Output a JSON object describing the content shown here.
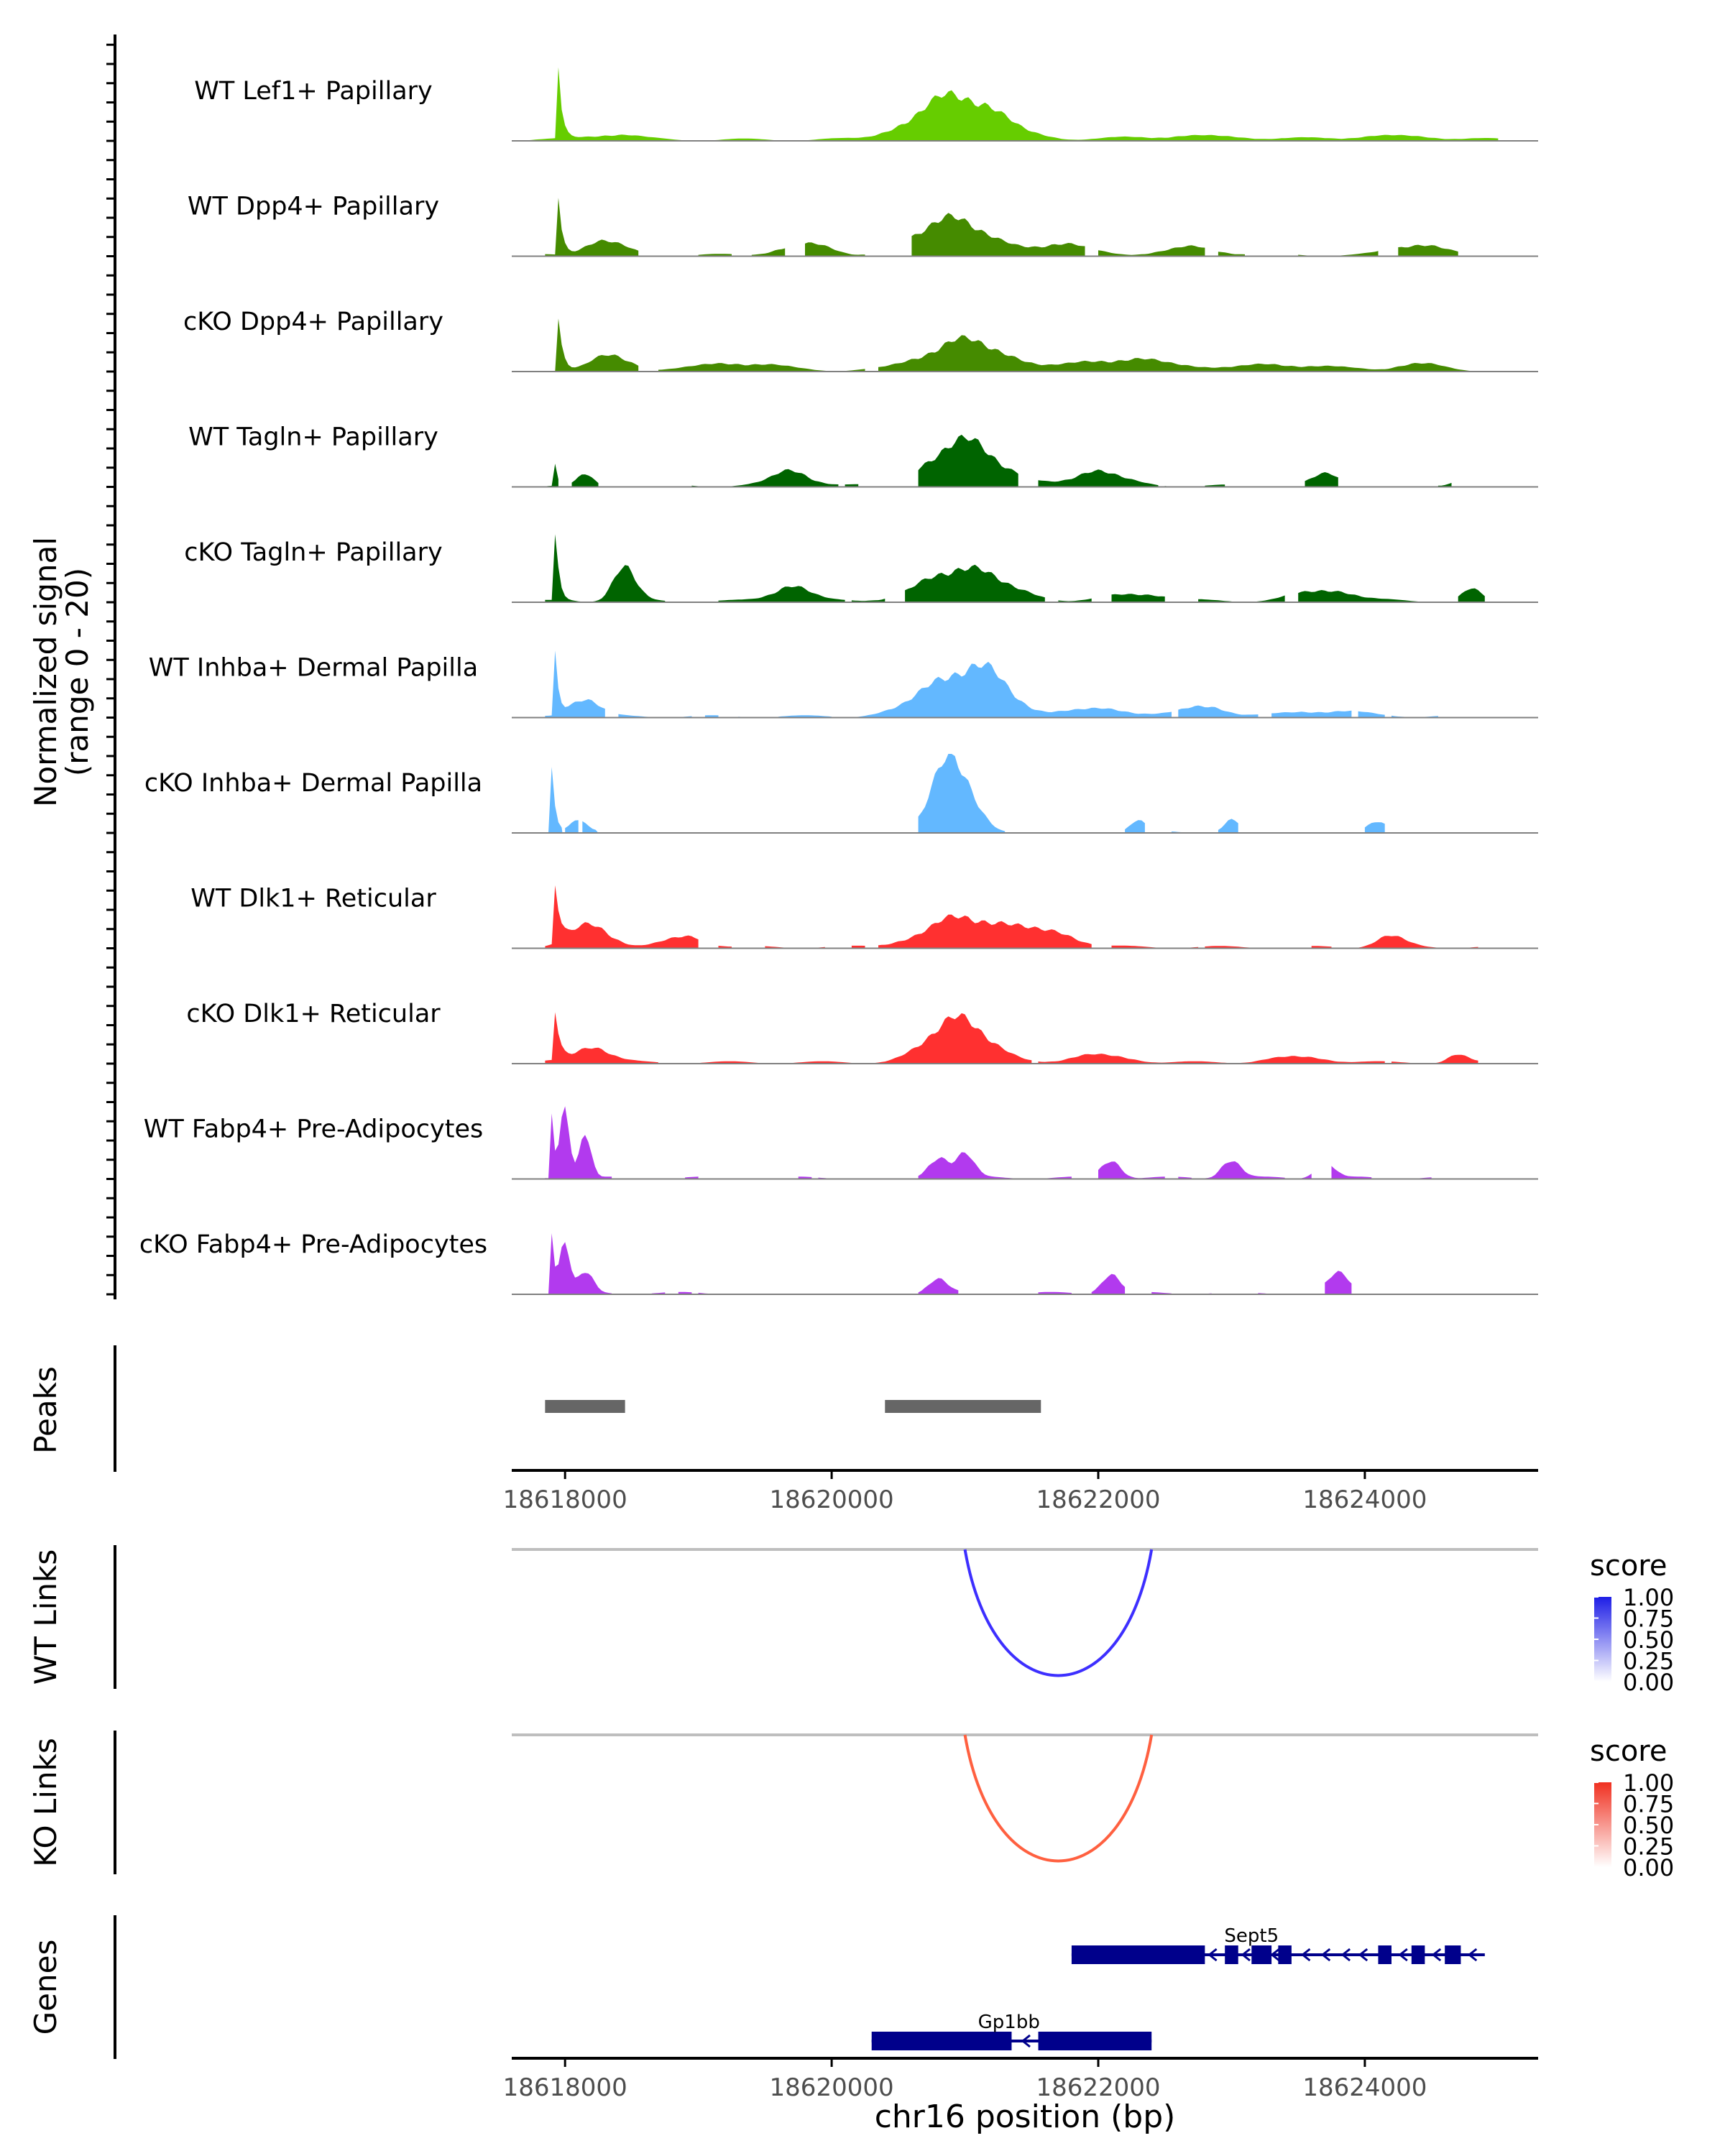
{
  "chart_data": {
    "type": "area",
    "chromosome": "chr16",
    "xlabel": "chr16 position (bp)",
    "xlim": [
      18617600,
      18625300
    ],
    "xticks": [
      18618000,
      18620000,
      18622000,
      18624000
    ],
    "xtick_labels": [
      "18618000",
      "18620000",
      "18622000",
      "18624000"
    ],
    "coverage": {
      "ylabel_line1": "Normalized signal",
      "ylabel_line2": "(range 0 - 20)",
      "ylim": [
        0,
        20
      ],
      "tracks": [
        {
          "name": "WT Lef1+ Papillary",
          "color": "#66cd00",
          "peaks": [
            [
              18617950,
              20,
              60
            ],
            [
              18618350,
              1.5,
              250
            ],
            [
              18620950,
              12,
              420
            ],
            [
              18622700,
              1,
              600
            ],
            [
              18624200,
              1,
              500
            ]
          ],
          "bins": [
            [
              18617600,
              18625000
            ]
          ]
        },
        {
          "name": "WT Dpp4+ Papillary",
          "color": "#458b00",
          "peaks": [
            [
              18617950,
              18,
              60
            ],
            [
              18618300,
              4,
              200
            ],
            [
              18619800,
              3,
              250
            ],
            [
              18620900,
              10,
              350
            ],
            [
              18621700,
              3,
              300
            ],
            [
              18622700,
              2,
              300
            ],
            [
              18624400,
              3,
              250
            ]
          ],
          "bins": [
            [
              18617850,
              18618550
            ],
            [
              18618750,
              18618850
            ],
            [
              18619000,
              18619250
            ],
            [
              18619400,
              18619650
            ],
            [
              18619800,
              18620250
            ],
            [
              18620600,
              18621900
            ],
            [
              18622000,
              18622800
            ],
            [
              18622900,
              18623100
            ],
            [
              18623500,
              18624100
            ],
            [
              18624250,
              18624700
            ]
          ]
        },
        {
          "name": "cKO Dpp4+ Papillary",
          "color": "#458b00",
          "peaks": [
            [
              18617950,
              16,
              70
            ],
            [
              18618350,
              4,
              200
            ],
            [
              18619300,
              2,
              400
            ],
            [
              18621000,
              8,
              400
            ],
            [
              18622200,
              3,
              500
            ],
            [
              18623400,
              1.5,
              500
            ],
            [
              18624400,
              2,
              200
            ]
          ],
          "bins": [
            [
              18617850,
              18618550
            ],
            [
              18618700,
              18620250
            ],
            [
              18620350,
              18625000
            ]
          ]
        },
        {
          "name": "WT Tagln+ Papillary",
          "color": "#006400",
          "peaks": [
            [
              18617920,
              8,
              40
            ],
            [
              18618150,
              3,
              80
            ],
            [
              18619700,
              4,
              200
            ],
            [
              18621000,
              12,
              350
            ],
            [
              18622000,
              4,
              250
            ],
            [
              18623700,
              3,
              150
            ],
            [
              18624700,
              1.5,
              80
            ]
          ],
          "bins": [
            [
              18617850,
              18617950
            ],
            [
              18618050,
              18618250
            ],
            [
              18618400,
              18618500
            ],
            [
              18618950,
              18619000
            ],
            [
              18619200,
              18620050
            ],
            [
              18620100,
              18620200
            ],
            [
              18620650,
              18621400
            ],
            [
              18621550,
              18622450
            ],
            [
              18622500,
              18622550
            ],
            [
              18622800,
              18622950
            ],
            [
              18623550,
              18623800
            ],
            [
              18624550,
              18624650
            ]
          ]
        },
        {
          "name": "cKO Tagln+ Papillary",
          "color": "#006400",
          "peaks": [
            [
              18617930,
              16,
              60
            ],
            [
              18618450,
              9,
              120
            ],
            [
              18619700,
              4,
              200
            ],
            [
              18621000,
              9,
              400
            ],
            [
              18622300,
              2,
              300
            ],
            [
              18623700,
              3,
              300
            ],
            [
              18624800,
              3,
              100
            ]
          ],
          "bins": [
            [
              18617850,
              18618350
            ],
            [
              18618350,
              18618750
            ],
            [
              18619150,
              18620100
            ],
            [
              18620150,
              18620400
            ],
            [
              18620550,
              18621600
            ],
            [
              18621700,
              18621950
            ],
            [
              18622100,
              18622500
            ],
            [
              18622750,
              18623000
            ],
            [
              18623100,
              18623400
            ],
            [
              18623500,
              18624600
            ],
            [
              18624700,
              18624900
            ]
          ]
        },
        {
          "name": "WT Inhba+ Dermal Papilla",
          "color": "#63b8ff",
          "peaks": [
            [
              18617920,
              18,
              60
            ],
            [
              18618150,
              5,
              150
            ],
            [
              18620900,
              10,
              350
            ],
            [
              18621200,
              7,
              250
            ],
            [
              18622000,
              2,
              400
            ],
            [
              18622800,
              3,
              200
            ],
            [
              18623700,
              1.5,
              400
            ]
          ],
          "bins": [
            [
              18617850,
              18618300
            ],
            [
              18618400,
              18618700
            ],
            [
              18618850,
              18618950
            ],
            [
              18619050,
              18619150
            ],
            [
              18619300,
              18619450
            ],
            [
              18619600,
              18620000
            ],
            [
              18620100,
              18620550
            ],
            [
              18620550,
              18621550
            ],
            [
              18621550,
              18622550
            ],
            [
              18622600,
              18623200
            ],
            [
              18623300,
              18623900
            ],
            [
              18623950,
              18624150
            ],
            [
              18624200,
              18624350
            ],
            [
              18624450,
              18624550
            ]
          ]
        },
        {
          "name": "cKO Inhba+ Dermal Papilla",
          "color": "#63b8ff",
          "peaks": [
            [
              18617900,
              17,
              60
            ],
            [
              18618100,
              3,
              80
            ],
            [
              18620900,
              20,
              200
            ],
            [
              18622300,
              3,
              80
            ],
            [
              18623000,
              3,
              80
            ],
            [
              18624100,
              3,
              100
            ]
          ],
          "bins": [
            [
              18617850,
              18617980
            ],
            [
              18618000,
              18618100
            ],
            [
              18618130,
              18618250
            ],
            [
              18620650,
              18621300
            ],
            [
              18622200,
              18622350
            ],
            [
              18622550,
              18622650
            ],
            [
              18622900,
              18623050
            ],
            [
              18624000,
              18624150
            ]
          ]
        },
        {
          "name": "WT Dlk1+ Reticular",
          "color": "#ff3030",
          "peaks": [
            [
              18617930,
              17,
              80
            ],
            [
              18618200,
              6,
              200
            ],
            [
              18618900,
              3,
              200
            ],
            [
              18621000,
              8,
              400
            ],
            [
              18621600,
              4,
              300
            ],
            [
              18624200,
              3,
              150
            ]
          ],
          "bins": [
            [
              18617850,
              18619000
            ],
            [
              18619150,
              18619250
            ],
            [
              18619500,
              18619650
            ],
            [
              18619800,
              18619950
            ],
            [
              18620150,
              18620250
            ],
            [
              18620350,
              18621950
            ],
            [
              18622100,
              18622750
            ],
            [
              18622800,
              18623150
            ],
            [
              18623600,
              18623750
            ],
            [
              18623850,
              18624550
            ],
            [
              18624650,
              18624850
            ]
          ]
        },
        {
          "name": "cKO Dlk1+ Reticular",
          "color": "#ff3030",
          "peaks": [
            [
              18617930,
              15,
              70
            ],
            [
              18618200,
              4,
              200
            ],
            [
              18620950,
              12,
              300
            ],
            [
              18622000,
              2,
              300
            ],
            [
              18623500,
              1.5,
              300
            ],
            [
              18624700,
              2,
              100
            ]
          ],
          "bins": [
            [
              18617850,
              18618700
            ],
            [
              18618850,
              18621500
            ],
            [
              18621550,
              18622550
            ],
            [
              18622550,
              18624150
            ],
            [
              18624200,
              18624850
            ]
          ]
        },
        {
          "name": "WT Fabp4+ Pre-Adipocytes",
          "color": "#b23aee",
          "peaks": [
            [
              18617900,
              18,
              50
            ],
            [
              18618000,
              20,
              50
            ],
            [
              18618150,
              12,
              60
            ],
            [
              18620800,
              6,
              100
            ],
            [
              18621000,
              6,
              100
            ],
            [
              18622100,
              5,
              100
            ],
            [
              18623000,
              5,
              100
            ],
            [
              18623700,
              4,
              100
            ]
          ],
          "bins": [
            [
              18617850,
              18618350
            ],
            [
              18618900,
              18619000
            ],
            [
              18619300,
              18619400
            ],
            [
              18619750,
              18619850
            ],
            [
              18619900,
              18620100
            ],
            [
              18620650,
              18621400
            ],
            [
              18621500,
              18621550
            ],
            [
              18621600,
              18621800
            ],
            [
              18622000,
              18622500
            ],
            [
              18622600,
              18622700
            ],
            [
              18622800,
              18623400
            ],
            [
              18623500,
              18623600
            ],
            [
              18623750,
              18624050
            ],
            [
              18624400,
              18624500
            ]
          ]
        },
        {
          "name": "cKO Fabp4+ Pre-Adipocytes",
          "color": "#b23aee",
          "peaks": [
            [
              18617900,
              16,
              50
            ],
            [
              18618000,
              14,
              50
            ],
            [
              18618150,
              6,
              80
            ],
            [
              18620800,
              4,
              100
            ],
            [
              18622100,
              5,
              100
            ],
            [
              18623800,
              5,
              120
            ]
          ],
          "bins": [
            [
              18617850,
              18618350
            ],
            [
              18618450,
              18618600
            ],
            [
              18618650,
              18618750
            ],
            [
              18618850,
              18618950
            ],
            [
              18619000,
              18619100
            ],
            [
              18619150,
              18619250
            ],
            [
              18620650,
              18620950
            ],
            [
              18621550,
              18621800
            ],
            [
              18621950,
              18622200
            ],
            [
              18622400,
              18622550
            ],
            [
              18622700,
              18622850
            ],
            [
              18623200,
              18623300
            ],
            [
              18623700,
              18623900
            ]
          ]
        }
      ]
    },
    "peaks_track": {
      "label": "Peaks",
      "regions": [
        [
          18617850,
          18618450
        ],
        [
          18620400,
          18621570
        ]
      ],
      "color": "#666666"
    },
    "links_tracks": [
      {
        "label": "WT Links",
        "legend_title": "score",
        "legend_ticks": [
          "1.00",
          "0.75",
          "0.50",
          "0.25",
          "0.00"
        ],
        "color": "#3d2fff",
        "high_color": "#1e1ee6",
        "links": [
          {
            "start": 18621000,
            "end": 18622400,
            "score": 0.8
          }
        ]
      },
      {
        "label": "KO Links",
        "legend_title": "score",
        "legend_ticks": [
          "1.00",
          "0.75",
          "0.50",
          "0.25",
          "0.00"
        ],
        "color": "#ff6040",
        "high_color": "#f03020",
        "links": [
          {
            "start": 18621000,
            "end": 18622400,
            "score": 0.7
          }
        ]
      }
    ],
    "genes_track": {
      "label": "Genes",
      "color": "#00008b",
      "genes": [
        {
          "name": "Sept5",
          "strand": "-",
          "start": 18621800,
          "end": 18624900,
          "exons": [
            [
              18621800,
              18622800
            ],
            [
              18622950,
              18623050
            ],
            [
              18623150,
              18623300
            ],
            [
              18623350,
              18623450
            ],
            [
              18624100,
              18624200
            ],
            [
              18624350,
              18624450
            ],
            [
              18624600,
              18624720
            ]
          ],
          "arrows": [
            18622850,
            18623100,
            18623320,
            18623550,
            18623700,
            18623850,
            18623980,
            18624280,
            18624530,
            18624800
          ]
        },
        {
          "name": "Gp1bb",
          "strand": "-",
          "start": 18620300,
          "end": 18622400,
          "exons": [
            [
              18620300,
              18621350
            ],
            [
              18621550,
              18622400
            ]
          ],
          "arrows": [
            18621450
          ]
        }
      ]
    }
  }
}
